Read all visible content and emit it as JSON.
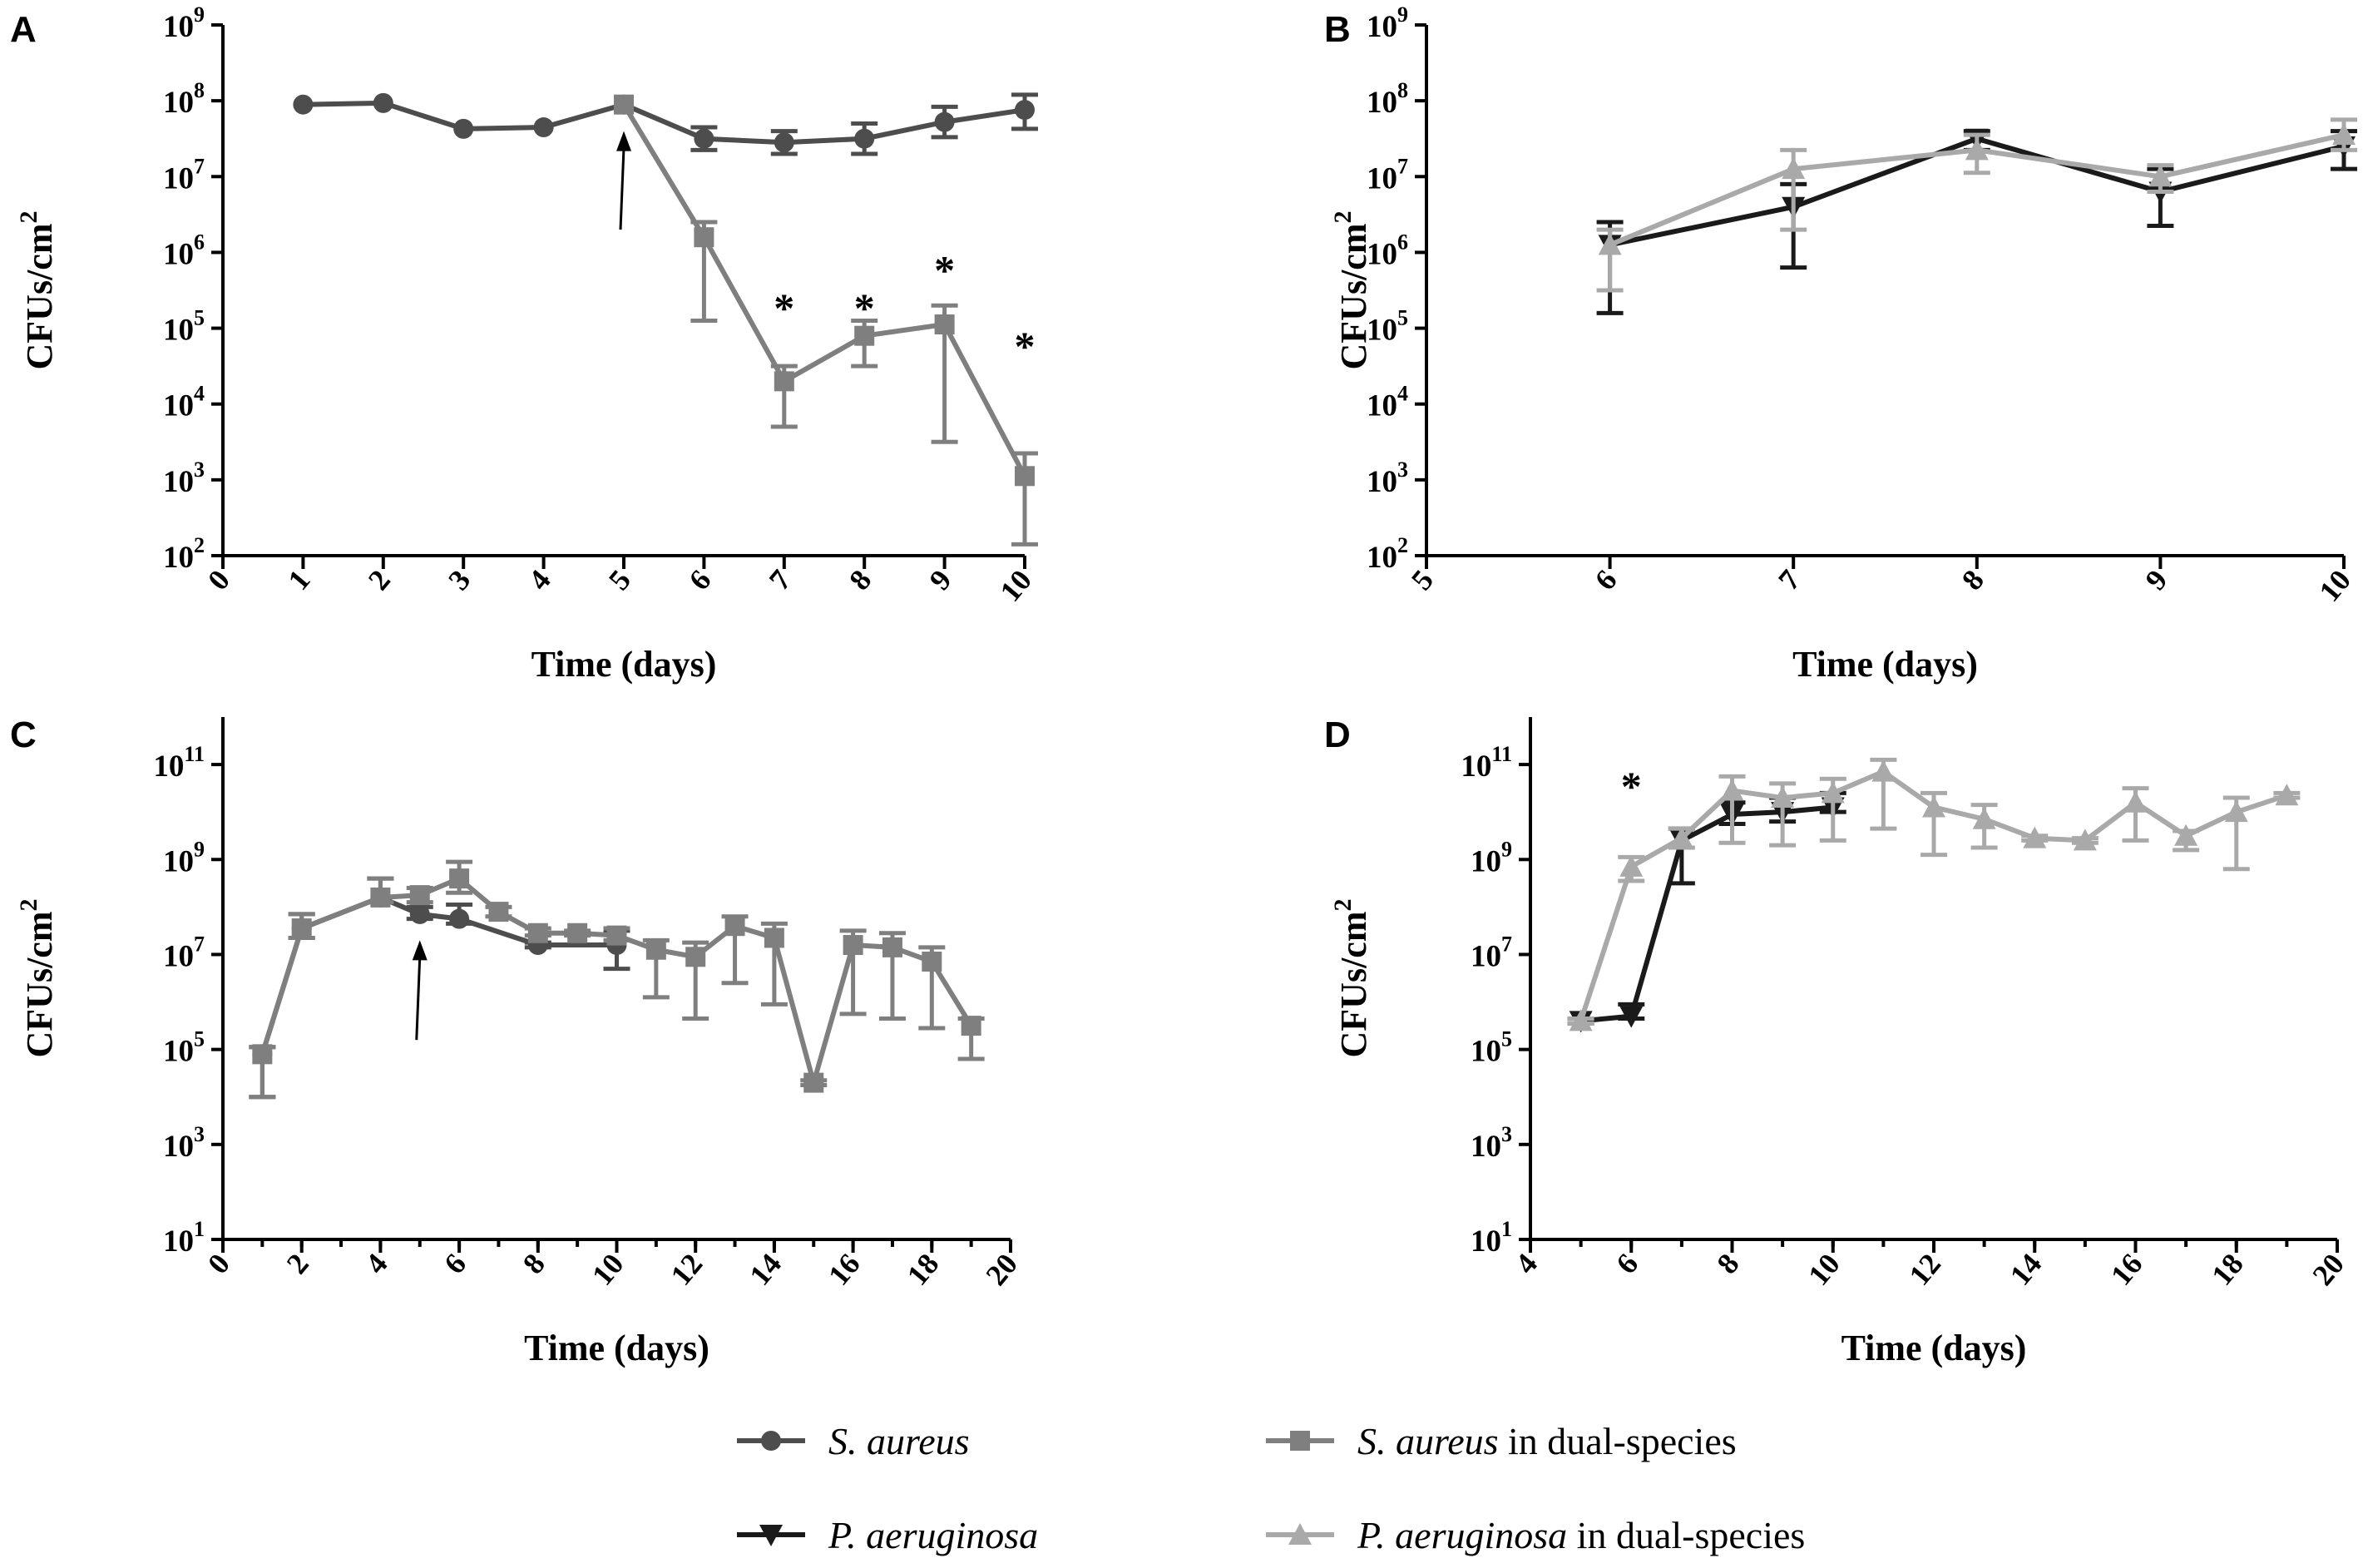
{
  "chart_data": [
    {
      "panel": "A",
      "type": "line",
      "xlabel": "Time (days)",
      "ylabel": "CFUs/cm",
      "ylabel_sup": "2",
      "yscale": "log",
      "xlim": [
        0,
        10
      ],
      "ylim_log10": [
        2,
        9
      ],
      "x_ticks": [
        "0",
        "1",
        "2",
        "3",
        "4",
        "5",
        "6",
        "7",
        "8",
        "9",
        "10"
      ],
      "y_tick_exponents": [
        "2",
        "3",
        "4",
        "5",
        "6",
        "7",
        "8",
        "9"
      ],
      "y_tick_base": "10",
      "arrow_at": {
        "x": 5,
        "y_log10": [
          6.3,
          7.6
        ]
      },
      "stars": [
        {
          "x": 7,
          "y_log10": 5.3,
          "text": "*"
        },
        {
          "x": 8,
          "y_log10": 5.3,
          "text": "*"
        },
        {
          "x": 9,
          "y_log10": 5.8,
          "text": "*"
        },
        {
          "x": 10,
          "y_log10": 4.8,
          "text": "*"
        }
      ],
      "series": [
        {
          "name": "S. aureus",
          "style": "sa",
          "x": [
            1,
            2,
            3,
            4,
            5,
            6,
            7,
            8,
            9,
            10
          ],
          "y_log10": [
            7.95,
            7.97,
            7.63,
            7.65,
            7.95,
            7.5,
            7.45,
            7.5,
            7.72,
            7.88
          ],
          "err_up": [
            0,
            0,
            0,
            0,
            0,
            0.15,
            0.15,
            0.2,
            0.2,
            0.2
          ],
          "err_down": [
            0,
            0,
            0,
            0,
            0,
            0.15,
            0.15,
            0.2,
            0.2,
            0.25
          ]
        },
        {
          "name": "S. aureus in dual-species",
          "style": "sadual",
          "x": [
            5,
            6,
            7,
            8,
            9,
            10
          ],
          "y_log10": [
            7.95,
            6.2,
            4.3,
            4.9,
            5.05,
            3.05
          ],
          "err_up": [
            0,
            0.2,
            0.2,
            0.2,
            0.25,
            0.3
          ],
          "err_down": [
            0,
            1.1,
            0.6,
            0.4,
            1.55,
            0.9
          ]
        }
      ]
    },
    {
      "panel": "B",
      "type": "line",
      "xlabel": "Time (days)",
      "ylabel": "CFUs/cm",
      "ylabel_sup": "2",
      "yscale": "log",
      "xlim": [
        5,
        10
      ],
      "ylim_log10": [
        2,
        9
      ],
      "x_ticks": [
        "5",
        "6",
        "7",
        "8",
        "9",
        "10"
      ],
      "y_tick_exponents": [
        "2",
        "3",
        "4",
        "5",
        "6",
        "7",
        "8",
        "9"
      ],
      "y_tick_base": "10",
      "series": [
        {
          "name": "P. aeruginosa",
          "style": "pa",
          "x": [
            6,
            7,
            8,
            9,
            10
          ],
          "y_log10": [
            6.1,
            6.6,
            7.5,
            6.8,
            7.4
          ],
          "err_up": [
            0.3,
            0.3,
            0.1,
            0.3,
            0.2
          ],
          "err_down": [
            0.9,
            0.8,
            0.15,
            0.45,
            0.3
          ]
        },
        {
          "name": "P. aeruginosa in dual-species",
          "style": "padual",
          "x": [
            6,
            7,
            8,
            9,
            10
          ],
          "y_log10": [
            6.1,
            7.1,
            7.35,
            7.0,
            7.55
          ],
          "err_up": [
            0.2,
            0.25,
            0.2,
            0.15,
            0.2
          ],
          "err_down": [
            0.6,
            0.8,
            0.3,
            0.2,
            0.2
          ]
        }
      ]
    },
    {
      "panel": "C",
      "type": "line",
      "xlabel": "Time (days)",
      "ylabel": "CFUs/cm",
      "ylabel_sup": "2",
      "yscale": "log",
      "xlim": [
        0,
        20
      ],
      "ylim_log10": [
        1,
        12
      ],
      "x_ticks": [
        "0",
        "2",
        "4",
        "6",
        "8",
        "10",
        "12",
        "14",
        "16",
        "18",
        "20"
      ],
      "x_tick_step": 2,
      "y_tick_exponents": [
        "1",
        "3",
        "5",
        "7",
        "9",
        "11"
      ],
      "y_tick_base": "10",
      "minor_x_step": 1,
      "arrow_at": {
        "x": 5,
        "y_log10": [
          5.2,
          7.3
        ]
      },
      "series": [
        {
          "name": "S. aureus",
          "style": "sa",
          "x": [
            1,
            2,
            4,
            5,
            6,
            8,
            10
          ],
          "y_log10": [
            4.9,
            7.55,
            8.2,
            7.85,
            7.75,
            7.2,
            7.2
          ],
          "err_up": [
            0.15,
            0.3,
            0.4,
            0.15,
            0.3,
            0.05,
            0.3
          ],
          "err_down": [
            0.9,
            0.2,
            0.1,
            0.1,
            0.1,
            0.05,
            0.5
          ]
        },
        {
          "name": "S. aureus in dual-species",
          "style": "sadual",
          "x": [
            1,
            2,
            4,
            5,
            6,
            7,
            8,
            9,
            10,
            11,
            12,
            13,
            14,
            15,
            16,
            17,
            18,
            19
          ],
          "y_log10": [
            4.9,
            7.55,
            8.2,
            8.25,
            8.6,
            7.9,
            7.45,
            7.45,
            7.4,
            7.1,
            6.95,
            7.6,
            7.35,
            4.3,
            7.2,
            7.15,
            6.85,
            5.5
          ],
          "err_up": [
            0.15,
            0.3,
            0.4,
            0.15,
            0.35,
            0.1,
            0.1,
            0.05,
            0.15,
            0.2,
            0.3,
            0.2,
            0.3,
            0.05,
            0.3,
            0.3,
            0.3,
            0.15
          ],
          "err_down": [
            0.9,
            0.2,
            0.1,
            0.15,
            0.3,
            0.1,
            0.05,
            0.05,
            0.1,
            1.0,
            1.3,
            1.2,
            1.4,
            0.05,
            1.45,
            1.5,
            1.4,
            0.7
          ]
        }
      ]
    },
    {
      "panel": "D",
      "type": "line",
      "xlabel": "Time (days)",
      "ylabel": "CFUs/cm",
      "ylabel_sup": "2",
      "yscale": "log",
      "xlim": [
        4,
        20
      ],
      "ylim_log10": [
        1,
        12
      ],
      "x_ticks": [
        "4",
        "6",
        "8",
        "10",
        "12",
        "14",
        "16",
        "18",
        "20"
      ],
      "x_tick_step": 2,
      "y_tick_exponents": [
        "1",
        "3",
        "5",
        "7",
        "9",
        "11"
      ],
      "y_tick_base": "10",
      "minor_x_step": 1,
      "stars": [
        {
          "x": 6,
          "y_log10": 10.6,
          "text": "*"
        }
      ],
      "series": [
        {
          "name": "P. aeruginosa",
          "style": "pa",
          "x": [
            5,
            6,
            7,
            8,
            9,
            10
          ],
          "y_log10": [
            5.6,
            5.7,
            9.4,
            9.95,
            10.0,
            10.1
          ],
          "err_up": [
            0.05,
            0.25,
            0.25,
            0.25,
            0.3,
            0.3
          ],
          "err_down": [
            0.05,
            0.05,
            0.9,
            0.2,
            0.2,
            0.1
          ]
        },
        {
          "name": "P. aeruginosa in dual-species",
          "style": "padual",
          "x": [
            5,
            6,
            7,
            8,
            9,
            10,
            11,
            12,
            13,
            14,
            15,
            16,
            17,
            18,
            19
          ],
          "y_log10": [
            5.6,
            8.85,
            9.45,
            10.45,
            10.3,
            10.4,
            10.85,
            10.1,
            9.85,
            9.45,
            9.4,
            10.2,
            9.5,
            10.0,
            10.35
          ],
          "err_up": [
            0.05,
            0.2,
            0.2,
            0.3,
            0.3,
            0.3,
            0.25,
            0.3,
            0.3,
            0.05,
            0.05,
            0.3,
            0.1,
            0.3,
            0.05
          ],
          "err_down": [
            0.05,
            0.3,
            0.2,
            1.1,
            1.0,
            1.0,
            1.2,
            1.0,
            0.6,
            0.05,
            0.05,
            0.8,
            0.3,
            1.2,
            0.05
          ]
        }
      ]
    }
  ],
  "legend": [
    {
      "style": "sa",
      "species": "S. aureus",
      "suffix": ""
    },
    {
      "style": "sadual",
      "species": "S. aureus",
      "suffix": " in dual-species"
    },
    {
      "style": "pa",
      "species": "P. aeruginosa",
      "suffix": ""
    },
    {
      "style": "padual",
      "species": "P. aeruginosa",
      "suffix": " in dual-species"
    }
  ],
  "styles": {
    "sa": {
      "color": "#4d4d4d",
      "marker": "circle"
    },
    "sadual": {
      "color": "#7f7f7f",
      "marker": "square"
    },
    "pa": {
      "color": "#1a1a1a",
      "marker": "triangle-down"
    },
    "padual": {
      "color": "#a9a9a9",
      "marker": "triangle-up"
    }
  }
}
